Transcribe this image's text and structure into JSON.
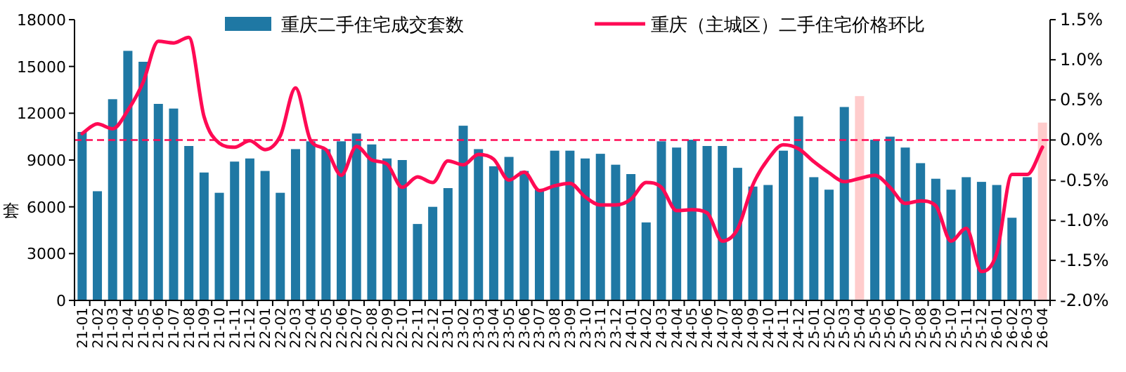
{
  "chart_data": {
    "type": "bar",
    "categories": [
      "21-01",
      "21-02",
      "21-03",
      "21-04",
      "21-05",
      "21-06",
      "21-07",
      "21-08",
      "21-09",
      "21-10",
      "21-11",
      "21-12",
      "22-01",
      "22-02",
      "22-03",
      "22-04",
      "22-05",
      "22-06",
      "22-07",
      "22-08",
      "22-09",
      "22-10",
      "22-11",
      "22-12",
      "23-01",
      "23-02",
      "23-03",
      "23-04",
      "23-05",
      "23-06",
      "23-07",
      "23-08",
      "23-09",
      "23-10",
      "23-11",
      "23-12",
      "24-01",
      "24-02",
      "24-03",
      "24-04",
      "24-05",
      "24-06",
      "24-07",
      "24-08",
      "24-09",
      "24-10",
      "24-11",
      "24-12",
      "25-01",
      "25-02",
      "25-03",
      "25-04",
      "25-05",
      "25-06",
      "25-07",
      "25-08",
      "25-09",
      "25-10",
      "25-11",
      "25-12",
      "26-01",
      "26-02",
      "26-03",
      "26-04"
    ],
    "ylabel": "套",
    "ylim": [
      0,
      18000
    ],
    "yticks": [
      0,
      3000,
      6000,
      9000,
      12000,
      15000,
      18000
    ],
    "y2lim": [
      -2.0,
      1.5
    ],
    "y2ticks": [
      {
        "value": -2.0,
        "label": "-2.0%"
      },
      {
        "value": -1.5,
        "label": "-1.5%"
      },
      {
        "value": -1.0,
        "label": "-1.0%"
      },
      {
        "value": -0.5,
        "label": "-0.5%"
      },
      {
        "value": 0.0,
        "label": "0.0%"
      },
      {
        "value": 0.5,
        "label": "0.5%"
      },
      {
        "value": 1.0,
        "label": "1.0%"
      },
      {
        "value": 1.5,
        "label": "1.5%"
      }
    ],
    "series": [
      {
        "name": "重庆二手住宅成交套数",
        "color": "#1f78a4",
        "colors": [
          "#1f78a4",
          "#1f78a4",
          "#1f78a4",
          "#1f78a4",
          "#1f78a4",
          "#1f78a4",
          "#1f78a4",
          "#1f78a4",
          "#1f78a4",
          "#1f78a4",
          "#1f78a4",
          "#1f78a4",
          "#1f78a4",
          "#1f78a4",
          "#1f78a4",
          "#1f78a4",
          "#1f78a4",
          "#1f78a4",
          "#1f78a4",
          "#1f78a4",
          "#1f78a4",
          "#1f78a4",
          "#1f78a4",
          "#1f78a4",
          "#1f78a4",
          "#1f78a4",
          "#1f78a4",
          "#1f78a4",
          "#1f78a4",
          "#1f78a4",
          "#1f78a4",
          "#1f78a4",
          "#1f78a4",
          "#1f78a4",
          "#1f78a4",
          "#1f78a4",
          "#1f78a4",
          "#1f78a4",
          "#1f78a4",
          "#1f78a4",
          "#1f78a4",
          "#1f78a4",
          "#1f78a4",
          "#1f78a4",
          "#1f78a4",
          "#1f78a4",
          "#1f78a4",
          "#1f78a4",
          "#1f78a4",
          "#1f78a4",
          "#1f78a4",
          "#ffcccc",
          "#1f78a4",
          "#1f78a4",
          "#1f78a4",
          "#1f78a4",
          "#1f78a4",
          "#1f78a4",
          "#1f78a4",
          "#1f78a4",
          "#1f78a4",
          "#1f78a4",
          "#1f78a4",
          "#ffcccc"
        ],
        "values": [
          10800,
          7000,
          12900,
          16000,
          15300,
          12600,
          12300,
          9900,
          8200,
          6900,
          8900,
          9100,
          8300,
          6900,
          9700,
          10200,
          9700,
          10200,
          10700,
          10000,
          9100,
          9000,
          4900,
          6000,
          7200,
          11200,
          9700,
          8600,
          9200,
          8300,
          7100,
          9600,
          9600,
          9100,
          9400,
          8700,
          8100,
          5000,
          10200,
          9800,
          10300,
          9900,
          9900,
          8500,
          7300,
          7400,
          9600,
          11800,
          7900,
          7100,
          12400,
          13100,
          10300,
          10500,
          9800,
          8800,
          7800,
          7100,
          7900,
          7600,
          7400,
          5300,
          7900,
          11400
        ]
      },
      {
        "name": "重庆（主城区）二手住宅价格环比",
        "type": "line",
        "axis": "y2",
        "color": "#ff0a54",
        "values": [
          0.08,
          0.2,
          0.14,
          0.37,
          0.72,
          1.23,
          1.21,
          1.28,
          0.29,
          -0.04,
          -0.09,
          -0.01,
          -0.12,
          0.05,
          0.65,
          -0.01,
          -0.12,
          -0.44,
          -0.08,
          -0.25,
          -0.3,
          -0.59,
          -0.46,
          -0.53,
          -0.26,
          -0.31,
          -0.18,
          -0.24,
          -0.5,
          -0.4,
          -0.63,
          -0.57,
          -0.54,
          -0.71,
          -0.81,
          -0.81,
          -0.74,
          -0.53,
          -0.59,
          -0.88,
          -0.87,
          -0.91,
          -1.26,
          -1.11,
          -0.56,
          -0.24,
          -0.06,
          -0.11,
          -0.27,
          -0.41,
          -0.52,
          -0.48,
          -0.44,
          -0.59,
          -0.79,
          -0.76,
          -0.82,
          -1.26,
          -1.1,
          -1.64,
          -1.41,
          -0.43,
          -0.43,
          -0.09
        ]
      }
    ],
    "ref_lines": [
      {
        "axis": "y2",
        "value": 0.0,
        "color": "#ff0a54",
        "line_style": "dashed"
      }
    ],
    "legend": "top",
    "grid": false
  }
}
